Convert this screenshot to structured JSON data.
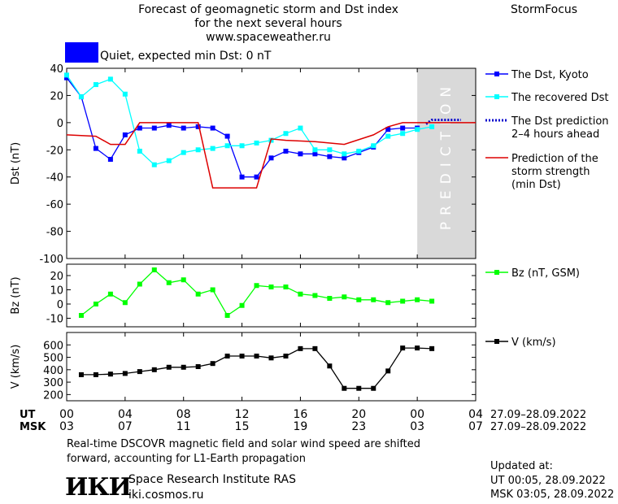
{
  "header": {
    "title_line1": "Forecast of geomagnetic storm and Dst index",
    "title_line2": "for the next several hours",
    "title_line3": "www.spaceweather.ru",
    "brand": "StormFocus"
  },
  "status": {
    "text": "Quiet, expected min Dst: 0 nT",
    "color": "#0000ff"
  },
  "colors": {
    "dst_kyoto": "#0000ff",
    "dst_recovered": "#00ffff",
    "dst_prediction": "#0000cc",
    "storm_strength": "#dd0000",
    "bz": "#00ff00",
    "speed": "#000000",
    "prediction_zone": "#d9d9d9"
  },
  "chart_data": [
    {
      "type": "line",
      "panel": "dst",
      "ylabel": "Dst (nT)",
      "ylim": [
        -100,
        40
      ],
      "yticks": [
        40,
        20,
        0,
        -20,
        -40,
        -60,
        -80,
        -100
      ],
      "xlim": [
        0,
        28
      ],
      "prediction_label": "PREDICTION",
      "prediction_zone": [
        24,
        28
      ],
      "series": [
        {
          "name": "The Dst, Kyoto",
          "x": [
            0,
            1,
            2,
            3,
            4,
            5,
            6,
            7,
            8,
            9,
            10,
            11,
            12,
            13,
            14,
            15,
            16,
            17,
            18,
            19,
            20,
            21,
            22,
            23,
            24
          ],
          "values": [
            33,
            19,
            -19,
            -27,
            -9,
            -4,
            -4,
            -2,
            -4,
            -3,
            -4,
            -10,
            -40,
            -40,
            -26,
            -21,
            -23,
            -23,
            -25,
            -26,
            -22,
            -18,
            -5,
            -4,
            -4
          ]
        },
        {
          "name": "The recovered Dst",
          "x": [
            0,
            1,
            2,
            3,
            4,
            5,
            6,
            7,
            8,
            9,
            10,
            11,
            12,
            13,
            14,
            15,
            16,
            17,
            18,
            19,
            20,
            21,
            22,
            23,
            24,
            25
          ],
          "values": [
            35,
            19,
            28,
            32,
            21,
            -21,
            -31,
            -28,
            -22,
            -20,
            -19,
            -17,
            -17,
            -15,
            -13,
            -8,
            -4,
            -20,
            -20,
            -23,
            -21,
            -17,
            -10,
            -8,
            -5,
            -3
          ]
        },
        {
          "name": "The Dst prediction\n2–4 hours ahead",
          "x": [
            24.6,
            25,
            26,
            27
          ],
          "values": [
            -1,
            2,
            2,
            2
          ]
        },
        {
          "name": "Prediction of the\nstorm strength\n(min Dst)",
          "x": [
            0,
            2,
            3,
            4,
            5,
            6,
            9,
            10,
            13,
            14,
            15,
            17,
            19,
            21,
            22,
            23,
            28
          ],
          "values": [
            -9,
            -10,
            -16,
            -16,
            0,
            0,
            0,
            -48,
            -48,
            -12,
            -13,
            -14,
            -16,
            -9,
            -3,
            0,
            0
          ]
        }
      ]
    },
    {
      "type": "line",
      "panel": "bz",
      "ylabel": "Bz (nT)",
      "ylim": [
        -16,
        28
      ],
      "yticks": [
        20,
        10,
        0,
        -10
      ],
      "xlim": [
        0,
        28
      ],
      "series": [
        {
          "name": "Bz (nT, GSM)",
          "x": [
            1,
            2,
            3,
            4,
            5,
            6,
            7,
            8,
            9,
            10,
            11,
            12,
            13,
            14,
            15,
            16,
            17,
            18,
            19,
            20,
            21,
            22,
            23,
            24,
            25
          ],
          "values": [
            -8,
            0,
            7,
            1,
            14,
            24,
            15,
            17,
            7,
            10,
            -8,
            -1,
            13,
            12,
            12,
            7,
            6,
            4,
            5,
            3,
            3,
            1,
            2,
            3,
            2
          ]
        }
      ]
    },
    {
      "type": "line",
      "panel": "speed",
      "ylabel": "V (km/s)",
      "ylim": [
        150,
        700
      ],
      "yticks": [
        600,
        500,
        400,
        300,
        200
      ],
      "xlim": [
        0,
        28
      ],
      "series": [
        {
          "name": "V (km/s)",
          "x": [
            1,
            2,
            3,
            4,
            5,
            6,
            7,
            8,
            9,
            10,
            11,
            12,
            13,
            14,
            15,
            16,
            17,
            18,
            19,
            20,
            21,
            22,
            23,
            24,
            25
          ],
          "values": [
            360,
            360,
            365,
            370,
            385,
            400,
            420,
            420,
            425,
            450,
            510,
            510,
            510,
            495,
            510,
            570,
            570,
            430,
            250,
            250,
            250,
            390,
            575,
            575,
            570
          ]
        }
      ]
    }
  ],
  "x_axis": {
    "ut_label": "UT",
    "msk_label": "MSK",
    "positions": [
      0,
      4,
      8,
      12,
      16,
      20,
      24,
      28
    ],
    "ut_ticks": [
      "00",
      "04",
      "08",
      "12",
      "16",
      "20",
      "00",
      "04"
    ],
    "msk_ticks": [
      "03",
      "07",
      "11",
      "15",
      "19",
      "23",
      "03",
      "07"
    ],
    "ut_range": "27.09–28.09.2022",
    "msk_range": "27.09–28.09.2022"
  },
  "footer": {
    "note_line1": "Real-time DSCOVR magnetic field and solar wind speed are shifted",
    "note_line2": "forward, accounting for L1-Earth propagation",
    "logo_text": "ИКИ",
    "org_name": "Space Research Institute RAS",
    "org_url": "iki.cosmos.ru",
    "updated_title": "Updated at:",
    "updated_ut": "UT   00:05, 28.09.2022",
    "updated_msk": "MSK 03:05, 28.09.2022"
  }
}
